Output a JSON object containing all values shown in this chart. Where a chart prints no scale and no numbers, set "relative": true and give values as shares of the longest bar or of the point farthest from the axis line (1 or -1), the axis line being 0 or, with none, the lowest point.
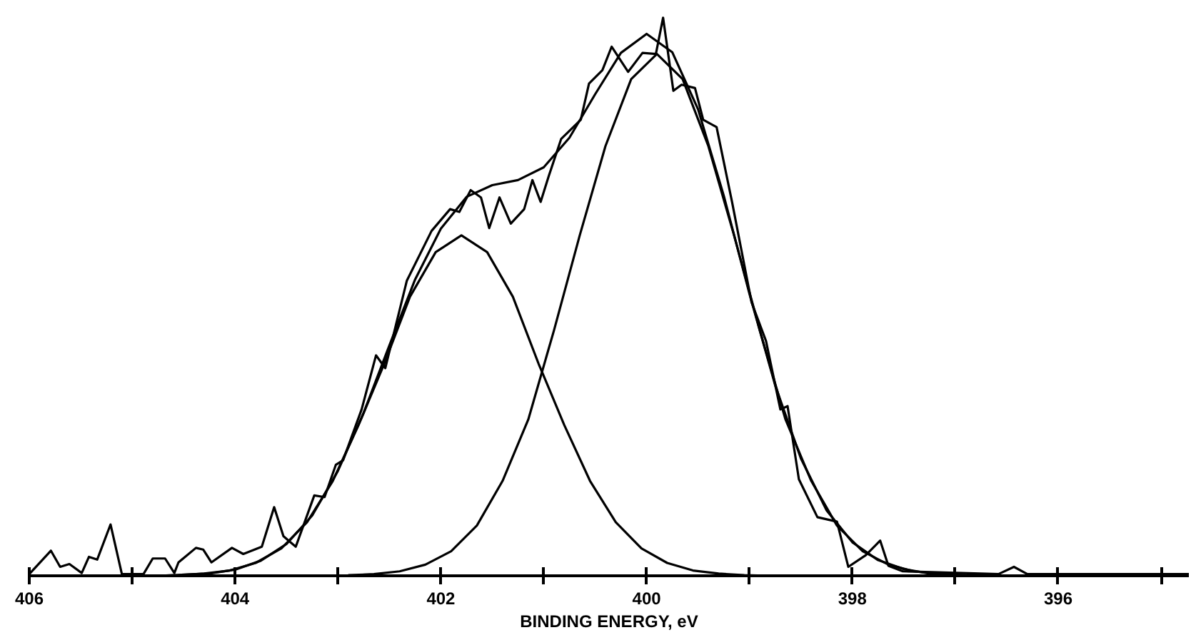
{
  "chart_data": {
    "type": "line",
    "relative": true,
    "xlabel": "BINDING ENERGY, eV",
    "xlim": [
      406,
      394.73
    ],
    "xticks": [
      406,
      {
        "value": 405,
        "label": null
      },
      404,
      {
        "value": 403,
        "label": null
      },
      402,
      {
        "value": 401,
        "label": null
      },
      400,
      {
        "value": 399,
        "label": null
      },
      398,
      {
        "value": 397,
        "label": null
      },
      396,
      {
        "value": 395,
        "label": null
      }
    ],
    "tick_labels": "x",
    "grid": false,
    "marker": "none",
    "line_style": "solid",
    "series": [
      {
        "color": "#000000",
        "x": [
          406.0,
          405.79,
          405.7,
          405.61,
          405.49,
          405.42,
          405.34,
          405.21,
          405.1,
          404.89,
          404.8,
          404.68,
          404.59,
          404.55,
          404.38,
          404.31,
          404.23,
          404.03,
          403.92,
          403.74,
          403.62,
          403.53,
          403.41,
          403.23,
          403.13,
          403.02,
          402.95,
          402.77,
          402.63,
          402.54,
          402.33,
          402.09,
          401.91,
          401.82,
          401.71,
          401.61,
          401.53,
          401.43,
          401.32,
          401.19,
          401.11,
          401.03,
          400.95,
          400.83,
          400.64,
          400.56,
          400.43,
          400.34,
          400.18,
          400.04,
          399.91,
          399.84,
          399.74,
          399.66,
          399.53,
          399.45,
          399.32,
          399.17,
          398.98,
          398.84,
          398.7,
          398.63,
          398.52,
          398.34,
          398.15,
          398.04,
          397.87,
          397.73,
          397.65,
          397.51,
          396.58,
          396.43,
          396.3,
          394.73
        ],
        "values": [
          0.003,
          0.045,
          0.016,
          0.021,
          0.005,
          0.034,
          0.029,
          0.092,
          0.003,
          0.003,
          0.031,
          0.031,
          0.005,
          0.024,
          0.05,
          0.047,
          0.024,
          0.05,
          0.039,
          0.052,
          0.123,
          0.071,
          0.052,
          0.144,
          0.141,
          0.199,
          0.207,
          0.298,
          0.395,
          0.372,
          0.529,
          0.618,
          0.657,
          0.652,
          0.691,
          0.678,
          0.623,
          0.678,
          0.631,
          0.657,
          0.709,
          0.67,
          0.717,
          0.783,
          0.817,
          0.882,
          0.906,
          0.948,
          0.903,
          0.937,
          0.935,
          1.0,
          0.869,
          0.88,
          0.874,
          0.817,
          0.804,
          0.67,
          0.49,
          0.421,
          0.298,
          0.304,
          0.173,
          0.105,
          0.097,
          0.016,
          0.037,
          0.063,
          0.018,
          0.008,
          0.003,
          0.016,
          0.003,
          0.003
        ]
      },
      {
        "color": "#000000",
        "x": [
          405.0,
          404.75,
          404.5,
          404.25,
          404.0,
          403.75,
          403.5,
          403.25,
          403.0,
          402.75,
          402.5,
          402.25,
          402.0,
          401.75,
          401.5,
          401.25,
          401.0,
          400.75,
          400.5,
          400.25,
          400.0,
          399.75,
          399.5,
          399.25,
          399.0,
          398.75,
          398.5,
          398.25,
          398.0,
          397.75,
          397.5,
          397.25,
          397.0,
          396.75
        ],
        "values": [
          0.0,
          0.0,
          0.002,
          0.004,
          0.011,
          0.027,
          0.057,
          0.108,
          0.188,
          0.292,
          0.413,
          0.531,
          0.622,
          0.679,
          0.7,
          0.709,
          0.732,
          0.785,
          0.863,
          0.937,
          0.971,
          0.938,
          0.836,
          0.681,
          0.505,
          0.341,
          0.21,
          0.117,
          0.06,
          0.028,
          0.012,
          0.004,
          0.001,
          0.0
        ]
      },
      {
        "color": "#000000",
        "x": [
          404.8,
          404.55,
          404.3,
          404.05,
          403.8,
          403.55,
          403.3,
          403.05,
          402.8,
          402.55,
          402.3,
          402.05,
          401.8,
          401.55,
          401.3,
          401.05,
          400.8,
          400.55,
          400.3,
          400.05,
          399.8,
          399.55,
          399.3,
          399.05,
          398.8
        ],
        "values": [
          0.0,
          0.001,
          0.004,
          0.0095,
          0.023,
          0.049,
          0.096,
          0.17,
          0.27,
          0.38,
          0.5,
          0.58,
          0.61,
          0.58,
          0.5,
          0.38,
          0.27,
          0.17,
          0.096,
          0.049,
          0.023,
          0.0095,
          0.004,
          0.001,
          0.0
        ]
      },
      {
        "color": "#000000",
        "x": [
          402.9,
          402.65,
          402.4,
          402.15,
          401.9,
          401.65,
          401.4,
          401.15,
          400.9,
          400.65,
          400.4,
          400.15,
          399.9,
          399.65,
          399.4,
          399.15,
          398.9,
          398.65,
          398.4,
          398.15,
          397.9,
          397.65,
          397.4,
          397.15,
          396.9
        ],
        "values": [
          0.001,
          0.003,
          0.008,
          0.02,
          0.044,
          0.09,
          0.17,
          0.28,
          0.44,
          0.61,
          0.77,
          0.89,
          0.935,
          0.89,
          0.77,
          0.61,
          0.44,
          0.28,
          0.17,
          0.09,
          0.044,
          0.02,
          0.008,
          0.003,
          0.001
        ]
      }
    ]
  }
}
